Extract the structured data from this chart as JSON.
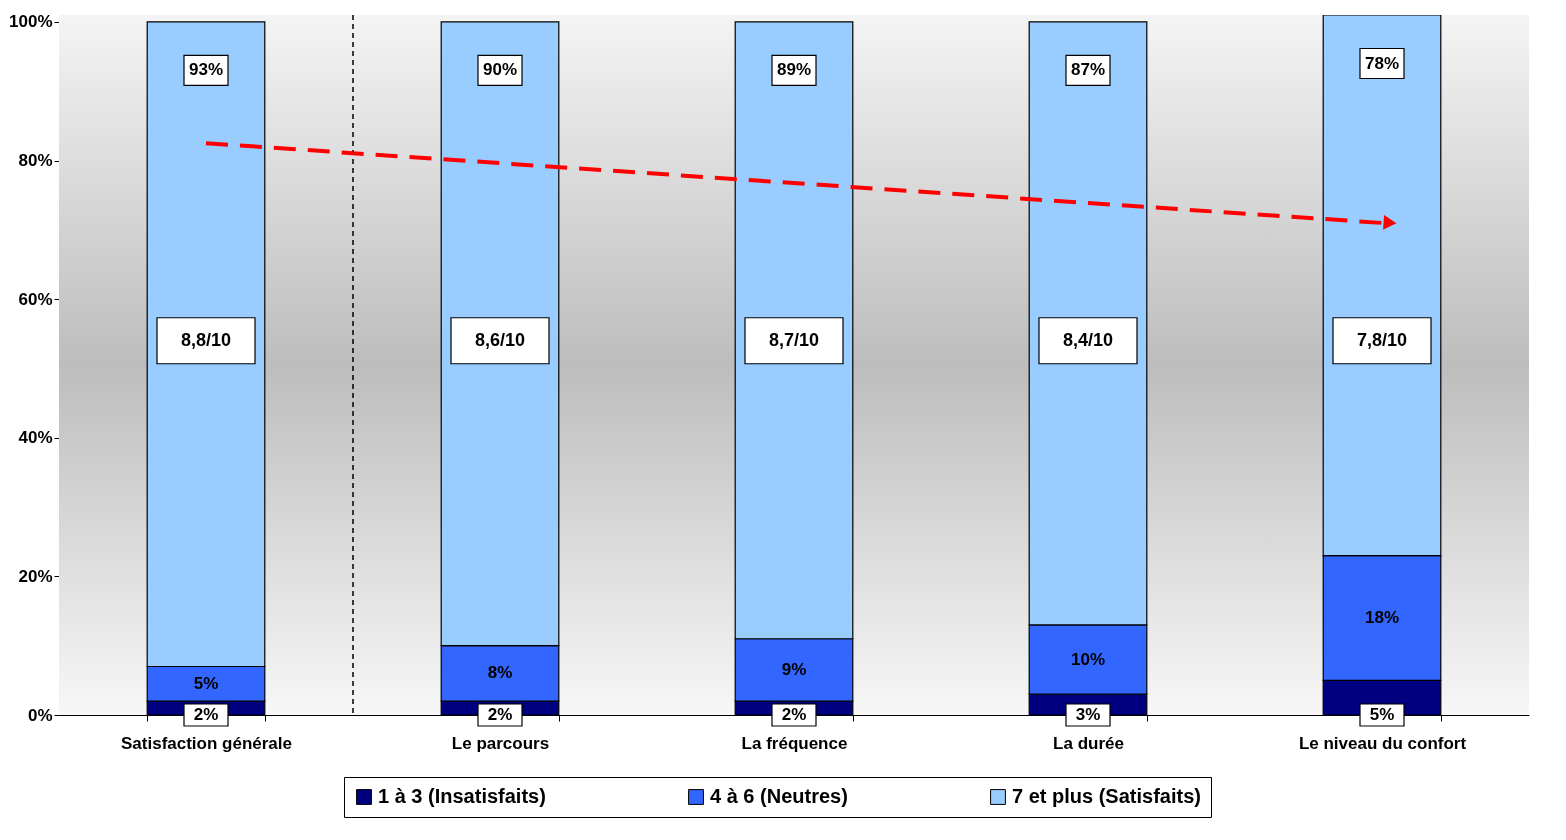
{
  "chart_data": {
    "type": "bar",
    "stacked": true,
    "categories": [
      "Satisfaction générale",
      "Le parcours",
      "La fréquence",
      "La durée",
      "Le niveau du confort"
    ],
    "series": [
      {
        "name": "1 à 3 (Insatisfaits)",
        "color": "#000080",
        "values": [
          2,
          2,
          2,
          3,
          5
        ],
        "value_labels": [
          "2%",
          "2%",
          "2%",
          "3%",
          "5%"
        ]
      },
      {
        "name": "4 à 6 (Neutres)",
        "color": "#3366ff",
        "values": [
          5,
          8,
          9,
          10,
          18
        ],
        "value_labels": [
          "5%",
          "8%",
          "9%",
          "10%",
          "18%"
        ]
      },
      {
        "name": "7 et plus (Satisfaits)",
        "color": "#99ccff",
        "values": [
          93,
          90,
          89,
          87,
          78
        ],
        "value_labels": [
          "93%",
          "90%",
          "89%",
          "87%",
          "78%"
        ]
      },
      {
        "type": "line",
        "color": "#ff0000",
        "line_style": "dashed",
        "x": [
          "Satisfaction générale",
          "Le niveau du confort"
        ],
        "values": [
          82.5,
          71
        ]
      }
    ],
    "ylim": [
      0,
      101
    ],
    "yticks": [
      {
        "value": 0,
        "label": "0%"
      },
      {
        "value": 20,
        "label": "20%"
      },
      {
        "value": 40,
        "label": "40%"
      },
      {
        "value": 60,
        "label": "60%"
      },
      {
        "value": 80,
        "label": "80%"
      },
      {
        "value": 100,
        "label": "100%"
      }
    ],
    "annotations": [
      "8,8/10",
      "8,6/10",
      "8,7/10",
      "8,4/10",
      "7,8/10"
    ],
    "legend": "bottom",
    "grid": false
  }
}
